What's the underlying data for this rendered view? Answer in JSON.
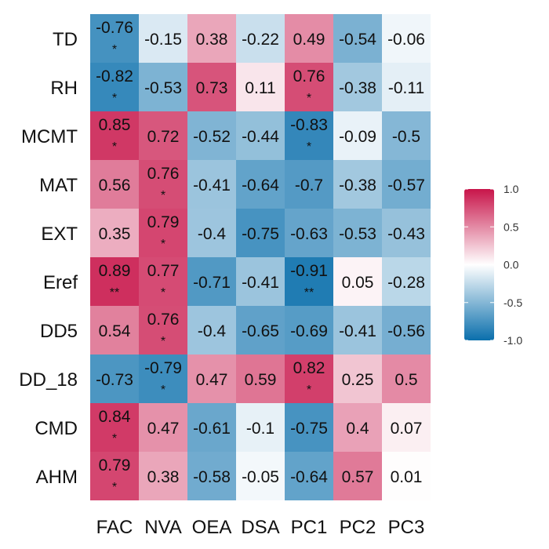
{
  "chart_data": {
    "type": "heatmap",
    "columns": [
      "FAC",
      "NVA",
      "OEA",
      "DSA",
      "PC1",
      "PC2",
      "PC3"
    ],
    "rows": [
      "TD",
      "RH",
      "MCMT",
      "MAT",
      "EXT",
      "Eref",
      "DD5",
      "DD_18",
      "CMD",
      "AHM"
    ],
    "values": [
      [
        -0.76,
        -0.15,
        0.38,
        -0.22,
        0.49,
        -0.54,
        -0.06
      ],
      [
        -0.82,
        -0.53,
        0.73,
        0.11,
        0.76,
        -0.38,
        -0.11
      ],
      [
        0.85,
        0.72,
        -0.52,
        -0.44,
        -0.83,
        -0.09,
        -0.5
      ],
      [
        0.56,
        0.76,
        -0.41,
        -0.64,
        -0.7,
        -0.38,
        -0.57
      ],
      [
        0.35,
        0.79,
        -0.4,
        -0.75,
        -0.63,
        -0.53,
        -0.43
      ],
      [
        0.89,
        0.77,
        -0.71,
        -0.41,
        -0.91,
        0.05,
        -0.28
      ],
      [
        0.54,
        0.76,
        -0.4,
        -0.65,
        -0.69,
        -0.41,
        -0.56
      ],
      [
        -0.73,
        -0.79,
        0.47,
        0.59,
        0.82,
        0.25,
        0.5
      ],
      [
        0.84,
        0.47,
        -0.61,
        -0.1,
        -0.75,
        0.4,
        0.07
      ],
      [
        0.79,
        0.38,
        -0.58,
        -0.05,
        -0.64,
        0.57,
        0.01
      ]
    ],
    "value_labels": [
      [
        "-0.76",
        "-0.15",
        "0.38",
        "-0.22",
        "0.49",
        "-0.54",
        "-0.06"
      ],
      [
        "-0.82",
        "-0.53",
        "0.73",
        "0.11",
        "0.76",
        "-0.38",
        "-0.11"
      ],
      [
        "0.85",
        "0.72",
        "-0.52",
        "-0.44",
        "-0.83",
        "-0.09",
        "-0.5"
      ],
      [
        "0.56",
        "0.76",
        "-0.41",
        "-0.64",
        "-0.7",
        "-0.38",
        "-0.57"
      ],
      [
        "0.35",
        "0.79",
        "-0.4",
        "-0.75",
        "-0.63",
        "-0.53",
        "-0.43"
      ],
      [
        "0.89",
        "0.77",
        "-0.71",
        "-0.41",
        "-0.91",
        "0.05",
        "-0.28"
      ],
      [
        "0.54",
        "0.76",
        "-0.4",
        "-0.65",
        "-0.69",
        "-0.41",
        "-0.56"
      ],
      [
        "-0.73",
        "-0.79",
        "0.47",
        "0.59",
        "0.82",
        "0.25",
        "0.5"
      ],
      [
        "0.84",
        "0.47",
        "-0.61",
        "-0.1",
        "-0.75",
        "0.4",
        "0.07"
      ],
      [
        "0.79",
        "0.38",
        "-0.58",
        "-0.05",
        "-0.64",
        "0.57",
        "0.01"
      ]
    ],
    "significance": [
      [
        "*",
        "",
        "",
        "",
        "",
        "",
        ""
      ],
      [
        "*",
        "",
        "",
        "",
        "*",
        "",
        ""
      ],
      [
        "*",
        "",
        "",
        "",
        "*",
        "",
        ""
      ],
      [
        "",
        "*",
        "",
        "",
        "",
        "",
        ""
      ],
      [
        "",
        "*",
        "",
        "",
        "",
        "",
        ""
      ],
      [
        "**",
        "*",
        "",
        "",
        "**",
        "",
        ""
      ],
      [
        "",
        "*",
        "",
        "",
        "",
        "",
        ""
      ],
      [
        "",
        "*",
        "",
        "",
        "*",
        "",
        ""
      ],
      [
        "*",
        "",
        "",
        "",
        "",
        "",
        ""
      ],
      [
        "*",
        "",
        "",
        "",
        "",
        "",
        ""
      ]
    ],
    "color_scale": {
      "domain": [
        -1.0,
        0.0,
        1.0
      ],
      "colors": [
        "#0a6fac",
        "#ffffff",
        "#c8154a"
      ],
      "ticks": [
        1.0,
        0.5,
        0.0,
        -0.5,
        -1.0
      ],
      "tick_labels": [
        "1.0",
        "0.5",
        "0.0",
        "-0.5",
        "-1.0"
      ]
    },
    "legend_position": "right",
    "title": "",
    "xlabel": "",
    "ylabel": ""
  }
}
